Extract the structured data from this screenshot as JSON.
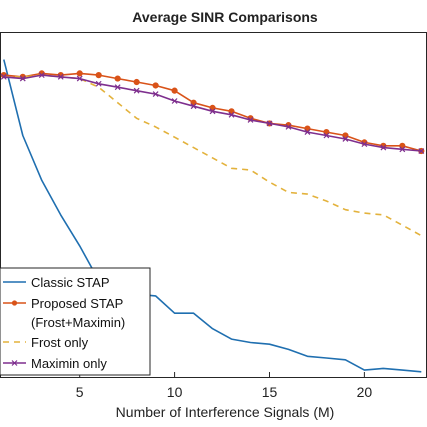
{
  "chart_data": {
    "type": "line",
    "title": "Average SINR Comparisons",
    "xlabel": "Number of Interference Signals (M)",
    "ylabel": "",
    "xlim": [
      0.8,
      23.3
    ],
    "ylim": [
      0,
      100
    ],
    "xticks": [
      5,
      10,
      15,
      20
    ],
    "xtick_labels": [
      "5",
      "10",
      "15",
      "20"
    ],
    "grid": false,
    "legend_position": "bottom-left",
    "series": [
      {
        "name": "Classic STAP",
        "color": "#1f6fb0",
        "style": "solid",
        "marker": "none",
        "x": [
          1,
          2,
          3,
          4,
          5,
          6,
          7,
          8,
          9,
          10,
          11,
          12,
          13,
          14,
          15,
          16,
          17,
          18,
          19,
          20,
          21,
          22,
          23
        ],
        "y": [
          92,
          70,
          57,
          47,
          38,
          28,
          26,
          24,
          23.5,
          18.5,
          18.5,
          14,
          11,
          10,
          9.5,
          8,
          6,
          5.5,
          5,
          2,
          2.5,
          2,
          1.5
        ]
      },
      {
        "name": "Proposed STAP\n(Frost+Maximin)",
        "color": "#d95319",
        "style": "solid",
        "marker": "circle",
        "x": [
          1,
          2,
          3,
          4,
          5,
          6,
          7,
          8,
          9,
          10,
          11,
          12,
          13,
          14,
          15,
          16,
          17,
          18,
          19,
          20,
          21,
          22,
          23
        ],
        "y": [
          87.5,
          87,
          88,
          87.5,
          88,
          87.5,
          86.5,
          85.5,
          84.5,
          83,
          79.5,
          78,
          77,
          75,
          73.5,
          73,
          72,
          71,
          70,
          68,
          67,
          67,
          65.5
        ]
      },
      {
        "name": "Frost only",
        "color": "#e3b23c",
        "style": "dashed",
        "marker": "none",
        "x": [
          1,
          2,
          3,
          4,
          5,
          6,
          7,
          8,
          9,
          10,
          11,
          12,
          13,
          14,
          15,
          16,
          17,
          18,
          19,
          20,
          21,
          22,
          23
        ],
        "y": [
          87,
          87,
          87.5,
          87,
          86.5,
          84,
          79.5,
          75,
          72.5,
          69.5,
          66.5,
          63.5,
          60.5,
          60,
          56.5,
          53.5,
          53,
          51,
          48.5,
          47.5,
          47,
          44,
          41
        ]
      },
      {
        "name": "Maximin only",
        "color": "#7e2f8e",
        "style": "solid",
        "marker": "x",
        "x": [
          1,
          2,
          3,
          4,
          5,
          6,
          7,
          8,
          9,
          10,
          11,
          12,
          13,
          14,
          15,
          16,
          17,
          18,
          19,
          20,
          21,
          22,
          23
        ],
        "y": [
          87,
          86.5,
          87.5,
          87,
          86.5,
          85,
          84,
          83,
          82,
          80,
          78.5,
          77,
          76,
          74.5,
          73.5,
          72.5,
          71,
          70,
          69,
          67.5,
          66.5,
          66,
          65.5
        ]
      }
    ]
  }
}
